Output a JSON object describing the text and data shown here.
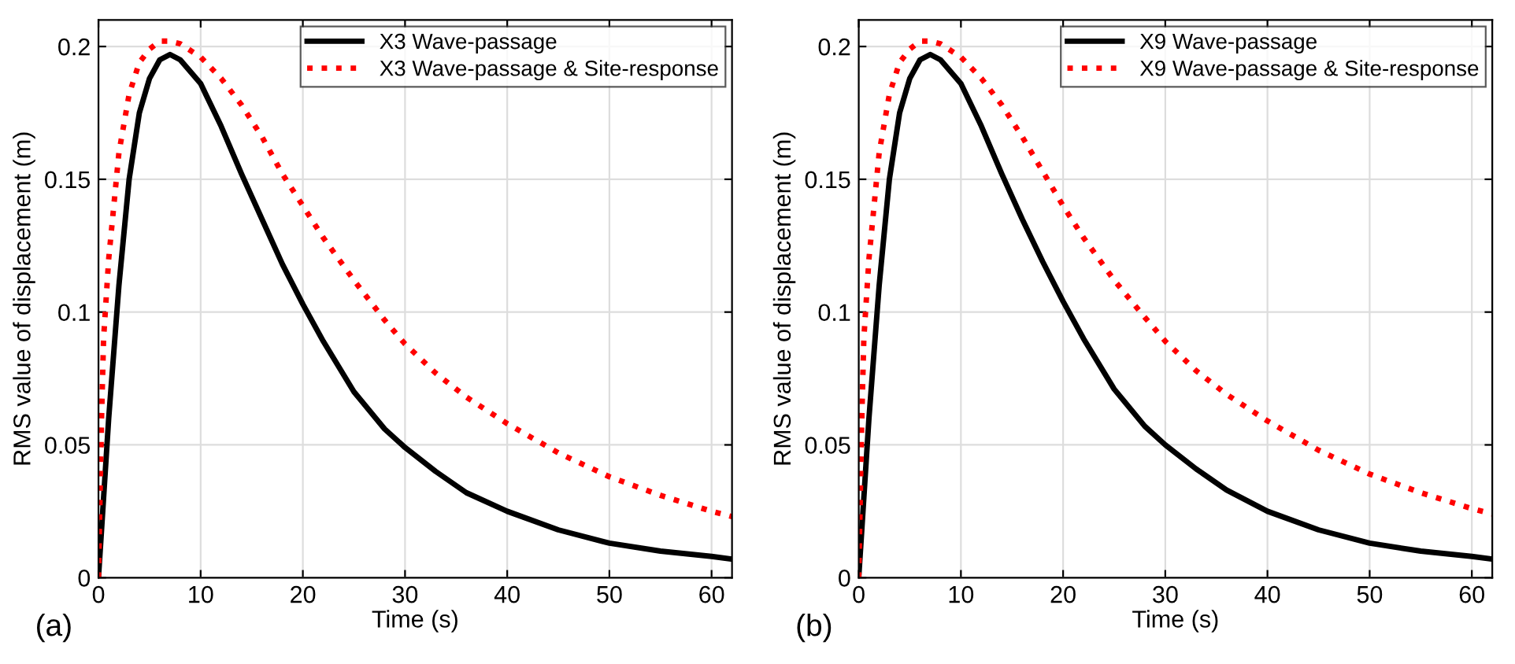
{
  "chart_data": [
    {
      "type": "line",
      "xlabel": "Time (s)",
      "ylabel": "RMS value of displacement (m)",
      "annotations": [
        "(a)"
      ],
      "x": [
        0,
        0.3,
        0.5,
        1,
        2,
        3,
        4,
        5,
        6,
        7,
        8,
        10,
        12,
        14,
        16,
        18,
        20,
        22,
        25,
        28,
        30,
        33,
        36,
        40,
        45,
        50,
        55,
        60,
        62
      ],
      "series": [
        {
          "name": "X3 Wave-passage",
          "color": "#000000",
          "line_style": "solid",
          "values": [
            0,
            0.018,
            0.03,
            0.06,
            0.11,
            0.15,
            0.175,
            0.188,
            0.195,
            0.197,
            0.195,
            0.186,
            0.17,
            0.152,
            0.135,
            0.118,
            0.103,
            0.089,
            0.07,
            0.056,
            0.049,
            0.04,
            0.032,
            0.025,
            0.018,
            0.013,
            0.01,
            0.008,
            0.007
          ]
        },
        {
          "name": "X3 Wave-passage & Site-response",
          "color": "#ff0000",
          "line_style": "dotted",
          "values": [
            0,
            0.06,
            0.09,
            0.12,
            0.16,
            0.182,
            0.194,
            0.199,
            0.202,
            0.202,
            0.201,
            0.196,
            0.188,
            0.178,
            0.166,
            0.152,
            0.14,
            0.128,
            0.112,
            0.097,
            0.088,
            0.077,
            0.068,
            0.058,
            0.047,
            0.038,
            0.031,
            0.025,
            0.023
          ]
        }
      ],
      "xlim": [
        0,
        62
      ],
      "ylim": [
        0,
        0.21
      ],
      "xticks": [
        0,
        10,
        20,
        30,
        40,
        50,
        60
      ],
      "yticks": [
        0,
        0.05,
        0.1,
        0.15,
        0.2
      ],
      "grid": true,
      "legend": "top right"
    },
    {
      "type": "line",
      "xlabel": "Time (s)",
      "ylabel": "RMS value of displacement (m)",
      "annotations": [
        "(b)"
      ],
      "x": [
        0,
        0.3,
        0.5,
        1,
        2,
        3,
        4,
        5,
        6,
        7,
        8,
        10,
        12,
        14,
        16,
        18,
        20,
        22,
        25,
        28,
        30,
        33,
        36,
        40,
        45,
        50,
        55,
        60,
        62
      ],
      "series": [
        {
          "name": "X9 Wave-passage",
          "color": "#000000",
          "line_style": "solid",
          "values": [
            0,
            0.018,
            0.03,
            0.06,
            0.11,
            0.15,
            0.175,
            0.188,
            0.195,
            0.197,
            0.195,
            0.186,
            0.17,
            0.152,
            0.135,
            0.119,
            0.104,
            0.09,
            0.071,
            0.057,
            0.05,
            0.041,
            0.033,
            0.025,
            0.018,
            0.013,
            0.01,
            0.008,
            0.007
          ]
        },
        {
          "name": "X9 Wave-passage & Site-response",
          "color": "#ff0000",
          "line_style": "dotted",
          "values": [
            0,
            0.06,
            0.09,
            0.12,
            0.16,
            0.182,
            0.194,
            0.199,
            0.202,
            0.202,
            0.201,
            0.196,
            0.188,
            0.178,
            0.166,
            0.153,
            0.14,
            0.128,
            0.112,
            0.098,
            0.089,
            0.078,
            0.069,
            0.059,
            0.048,
            0.039,
            0.032,
            0.026,
            0.024
          ]
        }
      ],
      "xlim": [
        0,
        62
      ],
      "ylim": [
        0,
        0.21
      ],
      "xticks": [
        0,
        10,
        20,
        30,
        40,
        50,
        60
      ],
      "yticks": [
        0,
        0.05,
        0.1,
        0.15,
        0.2
      ],
      "grid": true,
      "legend": "top right"
    }
  ]
}
